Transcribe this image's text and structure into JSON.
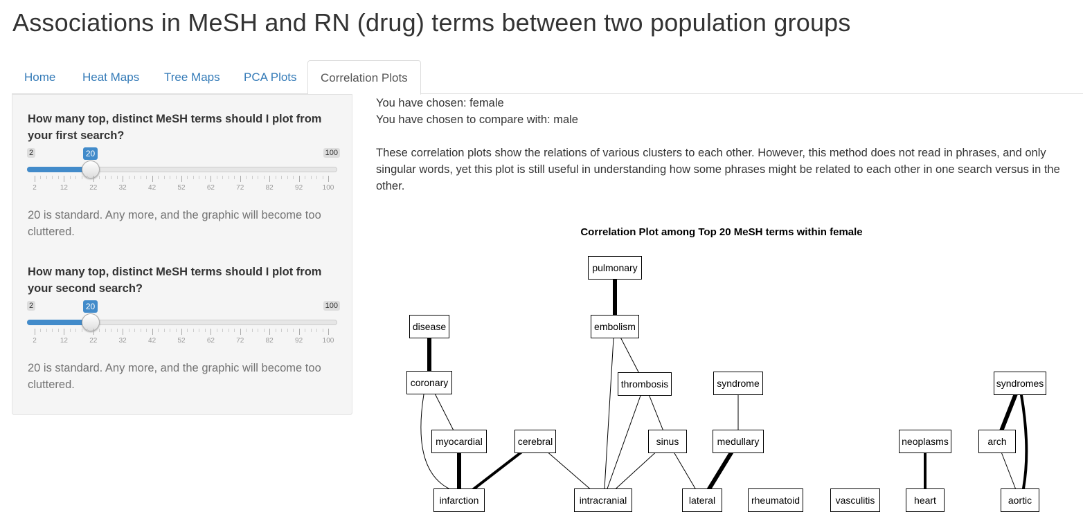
{
  "app_title": "Associations in MeSH and RN (drug) terms between two population groups",
  "tabs": [
    {
      "label": "Home",
      "active": false
    },
    {
      "label": "Heat Maps",
      "active": false
    },
    {
      "label": "Tree Maps",
      "active": false
    },
    {
      "label": "PCA Plots",
      "active": false
    },
    {
      "label": "Correlation Plots",
      "active": true
    }
  ],
  "sidebar": {
    "slider1": {
      "label": "How many top, distinct MeSH terms should I plot from your first search?",
      "min": 2,
      "max": 100,
      "value": 20,
      "min_label": "2",
      "max_label": "100",
      "value_label": "20",
      "tick_labels": [
        "2",
        "12",
        "22",
        "32",
        "42",
        "52",
        "62",
        "72",
        "82",
        "92",
        "100"
      ],
      "help": "20 is standard. Any more, and the graphic will become too cluttered."
    },
    "slider2": {
      "label": "How many top, distinct MeSH terms should I plot from your second search?",
      "min": 2,
      "max": 100,
      "value": 20,
      "min_label": "2",
      "max_label": "100",
      "value_label": "20",
      "tick_labels": [
        "2",
        "12",
        "22",
        "32",
        "42",
        "52",
        "62",
        "72",
        "82",
        "92",
        "100"
      ],
      "help": "20 is standard. Any more, and the graphic will become too cluttered."
    }
  },
  "main": {
    "chosen": "You have chosen: female",
    "compare": "You have chosen to compare with: male",
    "description": "These correlation plots show the relations of various clusters to each other. However, this method does not read in phrases, and only singular words, yet this plot is still useful in understanding how some phrases might be related to each other in one search versus in the other."
  },
  "plot": {
    "title": "Correlation Plot among Top 20 MeSH terms within female",
    "nodes": [
      "pulmonary",
      "disease",
      "embolism",
      "coronary",
      "thrombosis",
      "syndrome",
      "syndromes",
      "myocardial",
      "cerebral",
      "sinus",
      "medullary",
      "neoplasms",
      "arch",
      "infarction",
      "intracranial",
      "lateral",
      "rheumatoid",
      "vasculitis",
      "heart",
      "aortic"
    ],
    "edges": [
      {
        "from": "pulmonary",
        "to": "embolism",
        "weight": "strong"
      },
      {
        "from": "disease",
        "to": "coronary",
        "weight": "strong"
      },
      {
        "from": "coronary",
        "to": "myocardial",
        "weight": "thin"
      },
      {
        "from": "coronary",
        "to": "infarction",
        "weight": "thin"
      },
      {
        "from": "myocardial",
        "to": "infarction",
        "weight": "strong"
      },
      {
        "from": "cerebral",
        "to": "infarction",
        "weight": "medium"
      },
      {
        "from": "cerebral",
        "to": "intracranial",
        "weight": "thin"
      },
      {
        "from": "embolism",
        "to": "thrombosis",
        "weight": "thin"
      },
      {
        "from": "embolism",
        "to": "intracranial",
        "weight": "thin"
      },
      {
        "from": "thrombosis",
        "to": "intracranial",
        "weight": "thin"
      },
      {
        "from": "thrombosis",
        "to": "sinus",
        "weight": "thin"
      },
      {
        "from": "sinus",
        "to": "intracranial",
        "weight": "thin"
      },
      {
        "from": "sinus",
        "to": "lateral",
        "weight": "thin"
      },
      {
        "from": "syndrome",
        "to": "medullary",
        "weight": "thin"
      },
      {
        "from": "medullary",
        "to": "lateral",
        "weight": "strong"
      },
      {
        "from": "neoplasms",
        "to": "heart",
        "weight": "medium"
      },
      {
        "from": "syndromes",
        "to": "arch",
        "weight": "strong"
      },
      {
        "from": "syndromes",
        "to": "aortic",
        "weight": "medium"
      },
      {
        "from": "arch",
        "to": "aortic",
        "weight": "thin"
      }
    ]
  }
}
